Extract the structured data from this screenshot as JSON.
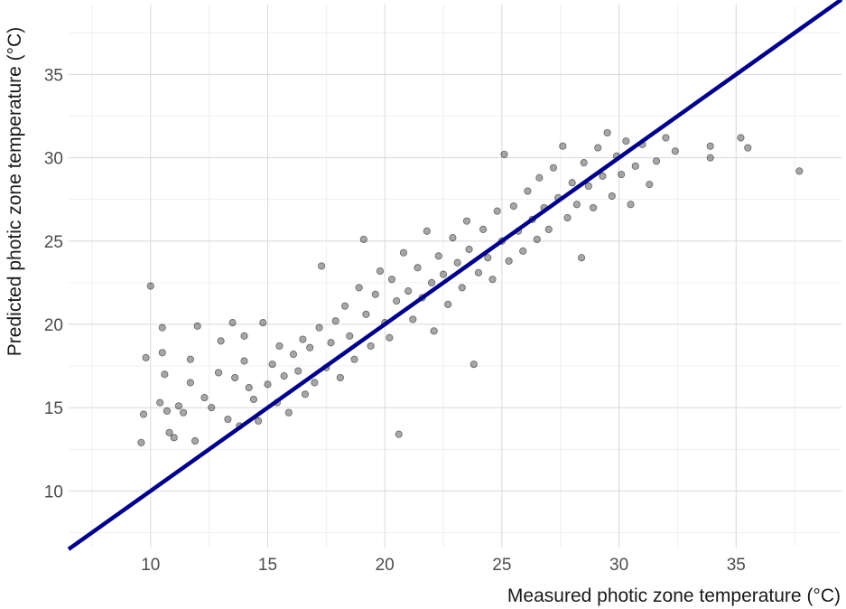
{
  "chart_data": {
    "type": "scatter",
    "title": "",
    "xlabel": "Measured photic zone temperature (°C)",
    "ylabel": "Predicted photic zone temperature (°C)",
    "xlim": [
      6.5,
      39.5
    ],
    "ylim": [
      6.6,
      39.2
    ],
    "x_ticks": [
      10,
      15,
      20,
      25,
      30,
      35
    ],
    "y_ticks": [
      10,
      15,
      20,
      25,
      30,
      35
    ],
    "grid": true,
    "legend": "none",
    "point_color": "#000000",
    "point_opacity": 0.35,
    "line_color": "#00008b",
    "reference_line": {
      "type": "identity",
      "from": [
        6.5,
        6.5
      ],
      "to": [
        39.5,
        39.5
      ]
    },
    "series": [
      {
        "points": [
          [
            9.6,
            12.9
          ],
          [
            9.7,
            14.6
          ],
          [
            9.8,
            18.0
          ],
          [
            10.0,
            22.3
          ],
          [
            10.4,
            15.3
          ],
          [
            10.5,
            19.8
          ],
          [
            10.5,
            18.3
          ],
          [
            10.6,
            17.0
          ],
          [
            10.7,
            14.8
          ],
          [
            10.8,
            13.5
          ],
          [
            11.0,
            13.2
          ],
          [
            11.2,
            15.1
          ],
          [
            11.4,
            14.7
          ],
          [
            11.7,
            16.5
          ],
          [
            11.7,
            17.9
          ],
          [
            11.9,
            13.0
          ],
          [
            12.0,
            19.9
          ],
          [
            12.3,
            15.6
          ],
          [
            12.6,
            15.0
          ],
          [
            12.9,
            17.1
          ],
          [
            13.0,
            19.0
          ],
          [
            13.3,
            14.3
          ],
          [
            13.5,
            20.1
          ],
          [
            13.6,
            16.8
          ],
          [
            13.8,
            13.9
          ],
          [
            14.0,
            17.8
          ],
          [
            14.0,
            19.3
          ],
          [
            14.2,
            16.2
          ],
          [
            14.4,
            15.5
          ],
          [
            14.6,
            14.2
          ],
          [
            14.8,
            20.1
          ],
          [
            15.0,
            16.4
          ],
          [
            15.2,
            17.6
          ],
          [
            15.4,
            15.3
          ],
          [
            15.5,
            18.7
          ],
          [
            15.7,
            16.9
          ],
          [
            15.9,
            14.7
          ],
          [
            16.1,
            18.2
          ],
          [
            16.3,
            17.2
          ],
          [
            16.5,
            19.1
          ],
          [
            16.6,
            15.8
          ],
          [
            16.8,
            18.6
          ],
          [
            17.0,
            16.5
          ],
          [
            17.2,
            19.8
          ],
          [
            17.3,
            23.5
          ],
          [
            17.5,
            17.4
          ],
          [
            17.7,
            18.9
          ],
          [
            17.9,
            20.2
          ],
          [
            18.1,
            16.8
          ],
          [
            18.3,
            21.1
          ],
          [
            18.5,
            19.3
          ],
          [
            18.7,
            17.9
          ],
          [
            18.9,
            22.2
          ],
          [
            19.1,
            25.1
          ],
          [
            19.2,
            20.6
          ],
          [
            19.4,
            18.7
          ],
          [
            19.6,
            21.8
          ],
          [
            19.8,
            23.2
          ],
          [
            20.0,
            20.1
          ],
          [
            20.2,
            19.2
          ],
          [
            20.3,
            22.7
          ],
          [
            20.5,
            21.4
          ],
          [
            20.6,
            13.4
          ],
          [
            20.8,
            24.3
          ],
          [
            21.0,
            22.0
          ],
          [
            21.2,
            20.3
          ],
          [
            21.4,
            23.4
          ],
          [
            21.6,
            21.6
          ],
          [
            21.8,
            25.6
          ],
          [
            22.0,
            22.5
          ],
          [
            22.1,
            19.6
          ],
          [
            22.3,
            24.1
          ],
          [
            22.5,
            23.0
          ],
          [
            22.7,
            21.2
          ],
          [
            22.9,
            25.2
          ],
          [
            23.1,
            23.7
          ],
          [
            23.3,
            22.2
          ],
          [
            23.5,
            26.2
          ],
          [
            23.6,
            24.5
          ],
          [
            23.8,
            17.6
          ],
          [
            24.0,
            23.1
          ],
          [
            24.2,
            25.7
          ],
          [
            24.4,
            24.0
          ],
          [
            24.6,
            22.7
          ],
          [
            24.8,
            26.8
          ],
          [
            25.0,
            25.0
          ],
          [
            25.1,
            30.2
          ],
          [
            25.3,
            23.8
          ],
          [
            25.5,
            27.1
          ],
          [
            25.7,
            25.6
          ],
          [
            25.9,
            24.4
          ],
          [
            26.1,
            28.0
          ],
          [
            26.3,
            26.3
          ],
          [
            26.5,
            25.1
          ],
          [
            26.6,
            28.8
          ],
          [
            26.8,
            27.0
          ],
          [
            27.0,
            25.7
          ],
          [
            27.2,
            29.4
          ],
          [
            27.4,
            27.6
          ],
          [
            27.6,
            30.7
          ],
          [
            27.8,
            26.4
          ],
          [
            28.0,
            28.5
          ],
          [
            28.2,
            27.2
          ],
          [
            28.4,
            24.0
          ],
          [
            28.5,
            29.7
          ],
          [
            28.7,
            28.3
          ],
          [
            28.9,
            27.0
          ],
          [
            29.1,
            30.6
          ],
          [
            29.3,
            28.9
          ],
          [
            29.5,
            31.5
          ],
          [
            29.7,
            27.7
          ],
          [
            29.9,
            30.1
          ],
          [
            30.1,
            29.0
          ],
          [
            30.3,
            31.0
          ],
          [
            30.5,
            27.2
          ],
          [
            30.7,
            29.5
          ],
          [
            31.0,
            30.8
          ],
          [
            31.3,
            28.4
          ],
          [
            31.6,
            29.8
          ],
          [
            32.0,
            31.2
          ],
          [
            32.4,
            30.4
          ],
          [
            33.9,
            30.7
          ],
          [
            33.9,
            30.0
          ],
          [
            35.2,
            31.2
          ],
          [
            35.5,
            30.6
          ],
          [
            37.7,
            29.2
          ]
        ]
      }
    ]
  }
}
